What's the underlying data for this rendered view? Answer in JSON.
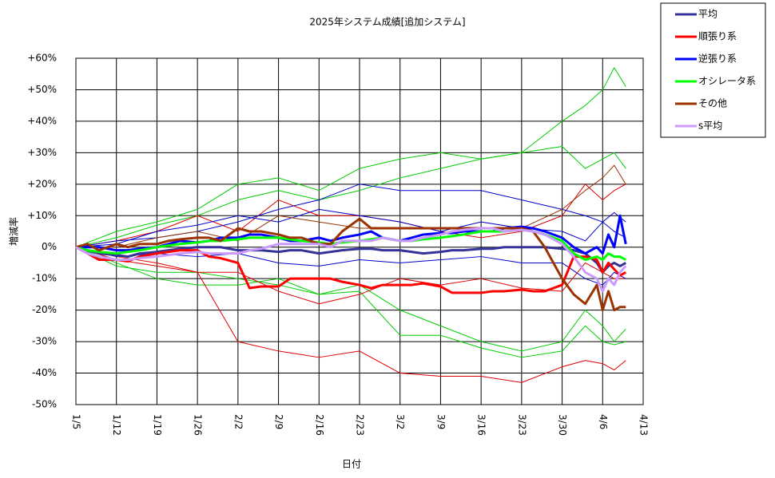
{
  "chart_data": {
    "type": "line",
    "title": "2025年システム成績[追加システム]",
    "x_label": "日付",
    "y_label": "増減率",
    "xlim": [
      0,
      98
    ],
    "ylim": [
      -50,
      60
    ],
    "grid": true,
    "legend": "right",
    "xticks": [
      {
        "value": 0,
        "label": "1/5"
      },
      {
        "value": 7,
        "label": "1/12"
      },
      {
        "value": 14,
        "label": "1/19"
      },
      {
        "value": 21,
        "label": "1/26"
      },
      {
        "value": 28,
        "label": "2/2"
      },
      {
        "value": 35,
        "label": "2/9"
      },
      {
        "value": 42,
        "label": "2/16"
      },
      {
        "value": 49,
        "label": "2/23"
      },
      {
        "value": 56,
        "label": "3/2"
      },
      {
        "value": 63,
        "label": "3/9"
      },
      {
        "value": 70,
        "label": "3/16"
      },
      {
        "value": 77,
        "label": "3/23"
      },
      {
        "value": 84,
        "label": "3/30"
      },
      {
        "value": 91,
        "label": "4/6"
      },
      {
        "value": 98,
        "label": "4/13"
      }
    ],
    "yticks": [
      {
        "value": 60,
        "label": "+60%"
      },
      {
        "value": 50,
        "label": "+50%"
      },
      {
        "value": 40,
        "label": "+40%"
      },
      {
        "value": 30,
        "label": "+30%"
      },
      {
        "value": 20,
        "label": "+20%"
      },
      {
        "value": 10,
        "label": "+10%"
      },
      {
        "value": 0,
        "label": "0%"
      },
      {
        "value": -10,
        "label": "-10%"
      },
      {
        "value": -20,
        "label": "-20%"
      },
      {
        "value": -30,
        "label": "-30%"
      },
      {
        "value": -40,
        "label": "-40%"
      },
      {
        "value": -50,
        "label": "-50%"
      }
    ],
    "x": [
      0,
      2,
      4,
      7,
      9,
      11,
      14,
      16,
      18,
      21,
      23,
      25,
      28,
      30,
      32,
      35,
      37,
      39,
      42,
      44,
      46,
      49,
      51,
      53,
      56,
      58,
      60,
      63,
      65,
      67,
      70,
      72,
      74,
      77,
      79,
      81,
      84,
      86,
      88,
      90,
      91,
      92,
      93,
      94,
      95
    ],
    "series": [
      {
        "color": "#00cc00",
        "width": 1,
        "x": [
          0,
          7,
          14,
          21,
          28,
          35,
          42,
          49,
          56,
          63,
          70,
          77,
          84,
          88,
          91,
          93,
          95
        ],
        "values": [
          0,
          5,
          8,
          12,
          20,
          22,
          18,
          25,
          28,
          30,
          28,
          30,
          40,
          45,
          50,
          57,
          51
        ]
      },
      {
        "color": "#00cc00",
        "width": 1,
        "x": [
          0,
          7,
          14,
          21,
          28,
          35,
          42,
          49,
          56,
          63,
          70,
          77,
          84,
          88,
          91,
          93,
          95
        ],
        "values": [
          0,
          3,
          7,
          10,
          15,
          18,
          15,
          18,
          22,
          25,
          28,
          30,
          32,
          25,
          28,
          30,
          25
        ]
      },
      {
        "color": "#00cc00",
        "width": 1,
        "x": [
          0,
          7,
          14,
          21,
          28,
          35,
          42,
          49,
          56,
          63,
          70,
          77,
          84,
          88,
          91,
          93,
          95
        ],
        "values": [
          0,
          -5,
          -10,
          -12,
          -12,
          -10,
          -15,
          -12,
          -20,
          -25,
          -30,
          -33,
          -30,
          -20,
          -25,
          -30,
          -26
        ]
      },
      {
        "color": "#00cc00",
        "width": 1,
        "x": [
          0,
          7,
          14,
          21,
          28,
          35,
          42,
          49,
          56,
          63,
          70,
          77,
          84,
          88,
          91,
          93,
          95
        ],
        "values": [
          0,
          -6,
          -8,
          -8,
          -10,
          -12,
          -15,
          -14,
          -28,
          -28,
          -32,
          -35,
          -33,
          -25,
          -30,
          -31,
          -30
        ]
      },
      {
        "color": "#dd0000",
        "width": 1,
        "x": [
          0,
          7,
          14,
          21,
          28,
          35,
          42,
          49,
          56,
          63,
          70,
          77,
          84,
          88,
          91,
          93,
          95
        ],
        "values": [
          0,
          -3,
          -5,
          -8,
          -30,
          -33,
          -35,
          -33,
          -40,
          -41,
          -41,
          -43,
          -38,
          -36,
          -37,
          -39,
          -36
        ]
      },
      {
        "color": "#dd0000",
        "width": 1,
        "x": [
          0,
          7,
          14,
          21,
          28,
          35,
          42,
          49,
          56,
          63,
          70,
          77,
          84,
          88,
          91,
          93,
          95
        ],
        "values": [
          0,
          2,
          5,
          10,
          5,
          15,
          10,
          10,
          8,
          5,
          3,
          5,
          10,
          20,
          15,
          18,
          20
        ]
      },
      {
        "color": "#dd0000",
        "width": 1,
        "x": [
          0,
          7,
          14,
          21,
          28,
          35,
          42,
          49,
          56,
          63,
          70,
          77,
          84,
          88,
          91,
          93,
          95
        ],
        "values": [
          0,
          -4,
          -6,
          -8,
          -8,
          -14,
          -18,
          -15,
          -10,
          -12,
          -10,
          -13,
          -14,
          -5,
          -8,
          -10,
          -10
        ]
      },
      {
        "color": "#0000cc",
        "width": 1,
        "x": [
          0,
          7,
          14,
          21,
          28,
          35,
          42,
          49,
          56,
          63,
          70,
          77,
          84,
          88,
          91,
          93,
          95
        ],
        "values": [
          0,
          2,
          3,
          5,
          8,
          12,
          15,
          20,
          18,
          18,
          18,
          15,
          12,
          10,
          8,
          11,
          8
        ]
      },
      {
        "color": "#0000cc",
        "width": 1,
        "x": [
          0,
          7,
          14,
          21,
          28,
          35,
          42,
          49,
          56,
          63,
          70,
          77,
          84,
          88,
          91,
          93,
          95
        ],
        "values": [
          0,
          -3,
          -2,
          -3,
          -2,
          -5,
          -6,
          -4,
          -5,
          -4,
          -3,
          -5,
          -5,
          -10,
          -12,
          -8,
          -10
        ]
      },
      {
        "color": "#0000cc",
        "width": 1,
        "x": [
          0,
          7,
          14,
          21,
          28,
          35,
          42,
          49,
          56,
          63,
          70,
          77,
          84,
          88,
          91,
          93,
          95
        ],
        "values": [
          0,
          1,
          5,
          7,
          10,
          8,
          12,
          10,
          8,
          5,
          8,
          6,
          5,
          2,
          8,
          5,
          3
        ]
      },
      {
        "color": "#993300",
        "width": 1,
        "x": [
          0,
          7,
          14,
          21,
          28,
          35,
          42,
          49,
          56,
          63,
          70,
          77,
          84,
          88,
          91,
          93,
          95
        ],
        "values": [
          0,
          0,
          3,
          5,
          2,
          10,
          8,
          6,
          6,
          6,
          6,
          6,
          12,
          18,
          22,
          26,
          20
        ]
      },
      {
        "name": "平均",
        "color": "#333399",
        "width": 3,
        "values": [
          0,
          -1,
          -2,
          -2.5,
          -3,
          -2,
          -1.5,
          -1,
          -0.5,
          0,
          0,
          0,
          -1,
          -1,
          -1,
          -1.5,
          -1,
          -1,
          -2,
          -1.5,
          -1,
          -0.5,
          -0.5,
          -1,
          -1,
          -1.5,
          -2,
          -1.5,
          -1,
          -1,
          -0.5,
          -0.5,
          0,
          0,
          0,
          0,
          -0.5,
          -1,
          -2,
          -5,
          -8,
          -6,
          -5,
          -6,
          -5
        ]
      },
      {
        "name": "順張り系",
        "color": "#ff0000",
        "width": 3,
        "values": [
          0,
          -2,
          -4,
          -4,
          -4.5,
          -3,
          -2,
          -1.5,
          -1,
          -1,
          -3,
          -3.5,
          -5,
          -13,
          -12.5,
          -12.5,
          -10,
          -10,
          -10,
          -10,
          -11,
          -12,
          -13,
          -12,
          -12,
          -12,
          -11.5,
          -12.5,
          -14.5,
          -14.5,
          -14.5,
          -14,
          -14,
          -13.5,
          -14,
          -14,
          -12,
          -3,
          -3,
          -4,
          -8,
          -5,
          -7,
          -9,
          -8
        ]
      },
      {
        "name": "逆張り系",
        "color": "#0000ff",
        "width": 3,
        "values": [
          0,
          0,
          0,
          -1,
          -1,
          -0.5,
          0,
          1,
          2,
          1.5,
          2,
          3,
          3,
          4,
          4,
          3,
          2,
          2,
          3,
          2,
          3,
          4,
          5,
          3,
          2,
          3,
          4,
          4.5,
          4.5,
          5,
          5,
          5,
          6,
          6.5,
          6,
          5,
          3,
          0,
          -2,
          0,
          -2,
          4,
          0,
          10,
          1
        ]
      },
      {
        "name": "オシレータ系",
        "color": "#00ff00",
        "width": 3,
        "values": [
          0,
          -1,
          -1.5,
          -2,
          -1.5,
          -1,
          0,
          0.5,
          1,
          1.5,
          2,
          2,
          2.5,
          3,
          3,
          3,
          2.5,
          2,
          1.5,
          1,
          1.5,
          2,
          2.5,
          3,
          2,
          2,
          2.5,
          3,
          3.5,
          4,
          5,
          5,
          5,
          5.5,
          5,
          4,
          2,
          -2,
          -4,
          -3,
          -4,
          -2,
          -3,
          -3,
          -4
        ]
      },
      {
        "name": "その他",
        "color": "#993300",
        "width": 3,
        "values": [
          0,
          1,
          -1,
          1,
          0,
          1,
          1,
          2,
          2.5,
          3,
          3,
          2,
          6,
          5,
          5,
          4,
          3,
          3,
          1,
          1,
          5,
          9,
          6,
          6,
          6,
          6,
          6,
          6,
          6,
          6,
          6,
          6,
          6,
          6,
          5,
          0,
          -10,
          -15,
          -18,
          -12,
          -20,
          -14,
          -20,
          -19,
          -19
        ]
      },
      {
        "name": "s平均",
        "color": "#cc99ff",
        "width": 3,
        "values": [
          0,
          -2,
          -3,
          -4,
          -4,
          -3.5,
          -3,
          -2.5,
          -2,
          -1.5,
          -2,
          -2,
          -2,
          -1,
          -0.5,
          1,
          1,
          1,
          1,
          0,
          2,
          2,
          2,
          3,
          2,
          2,
          3,
          4,
          5,
          5.5,
          6,
          6,
          5,
          5.5,
          5,
          4,
          1,
          -3,
          -8,
          -10,
          -14,
          -10,
          -12,
          -8,
          -6
        ]
      }
    ]
  }
}
